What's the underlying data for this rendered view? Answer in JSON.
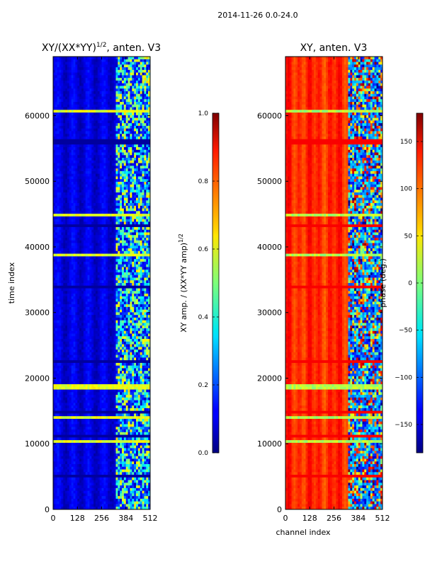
{
  "suptitle": "2014-11-26 0.0-24.0",
  "chart_data": [
    {
      "type": "heatmap",
      "title_main": "XY/(XX*YY)",
      "title_sup": "1/2",
      "title_tail": ", anten. V3",
      "xlabel": "",
      "ylabel": "time index",
      "xlim": [
        0,
        512
      ],
      "ylim": [
        0,
        69000
      ],
      "x_ticks": [
        0,
        128,
        256,
        384,
        512
      ],
      "y_ticks": [
        0,
        10000,
        20000,
        30000,
        40000,
        50000,
        60000
      ],
      "colorbar": {
        "label_main": "XY amp. / (XX*YY amp)",
        "label_sup": "1/2",
        "range": [
          0.0,
          1.0
        ],
        "ticks": [
          "0.0",
          "0.2",
          "0.4",
          "0.6",
          "0.8",
          "1.0"
        ]
      },
      "colormap": "jet"
    },
    {
      "type": "heatmap",
      "title_main": "XY, anten. V3",
      "xlabel": "channel index",
      "ylabel": "",
      "xlim": [
        0,
        512
      ],
      "ylim": [
        0,
        69000
      ],
      "x_ticks": [
        0,
        128,
        256,
        384,
        512
      ],
      "y_ticks": [
        0,
        10000,
        20000,
        30000,
        40000,
        50000,
        60000
      ],
      "colorbar": {
        "label_main": "phase (deg.)",
        "range": [
          -180,
          180
        ],
        "ticks": [
          "−150",
          "−100",
          "−50",
          "0",
          "50",
          "100",
          "150"
        ]
      },
      "colormap": "jet"
    }
  ]
}
